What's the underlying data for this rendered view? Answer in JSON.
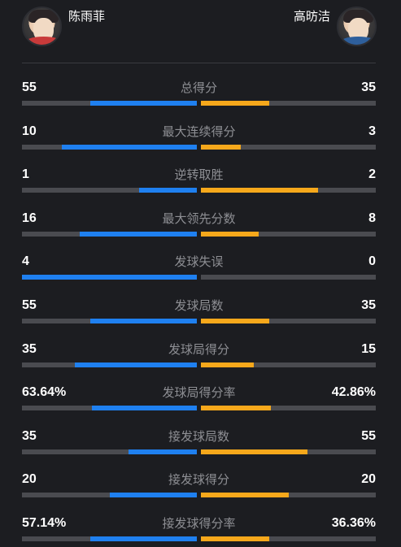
{
  "players": {
    "left": {
      "name": "陈雨菲",
      "color": "#1f80f0"
    },
    "right": {
      "name": "高昉洁",
      "color": "#f6a81b"
    }
  },
  "stats": [
    {
      "label": "总得分",
      "left": "55",
      "right": "35",
      "left_share": 0.61,
      "right_share": 0.39
    },
    {
      "label": "最大连续得分",
      "left": "10",
      "right": "3",
      "left_share": 0.77,
      "right_share": 0.23
    },
    {
      "label": "逆转取胜",
      "left": "1",
      "right": "2",
      "left_share": 0.33,
      "right_share": 0.67
    },
    {
      "label": "最大领先分数",
      "left": "16",
      "right": "8",
      "left_share": 0.67,
      "right_share": 0.33
    },
    {
      "label": "发球失误",
      "left": "4",
      "right": "0",
      "left_share": 1.0,
      "right_share": 0.0
    },
    {
      "label": "发球局数",
      "left": "55",
      "right": "35",
      "left_share": 0.61,
      "right_share": 0.39
    },
    {
      "label": "发球局得分",
      "left": "35",
      "right": "15",
      "left_share": 0.7,
      "right_share": 0.3
    },
    {
      "label": "发球局得分率",
      "left": "63.64%",
      "right": "42.86%",
      "left_share": 0.6,
      "right_share": 0.4
    },
    {
      "label": "接发球局数",
      "left": "35",
      "right": "55",
      "left_share": 0.39,
      "right_share": 0.61
    },
    {
      "label": "接发球得分",
      "left": "20",
      "right": "20",
      "left_share": 0.5,
      "right_share": 0.5
    },
    {
      "label": "接发球得分率",
      "left": "57.14%",
      "right": "36.36%",
      "left_share": 0.61,
      "right_share": 0.39
    }
  ]
}
